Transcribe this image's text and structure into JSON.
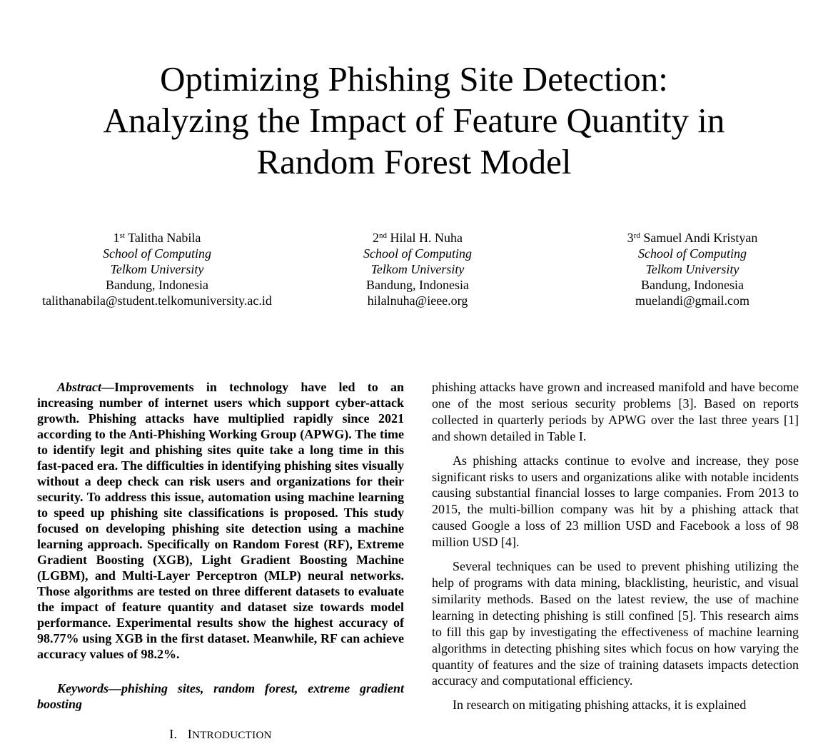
{
  "title_lines": [
    "Optimizing Phishing Site Detection:",
    "Analyzing the Impact of Feature Quantity in",
    "Random Forest Model"
  ],
  "authors": [
    {
      "ordinal_num": "1",
      "ordinal_sup": "st",
      "name": "Talitha Nabila",
      "school": "School of Computing",
      "university": "Telkom University",
      "location": "Bandung, Indonesia",
      "email": "talithanabila@student.telkomuniversity.ac.id"
    },
    {
      "ordinal_num": "2",
      "ordinal_sup": "nd",
      "name": "Hilal H. Nuha",
      "school": "School of Computing",
      "university": "Telkom University",
      "location": "Bandung, Indonesia",
      "email": "hilalnuha@ieee.org"
    },
    {
      "ordinal_num": "3",
      "ordinal_sup": "rd",
      "name": "Samuel Andi Kristyan",
      "school": "School of Computing",
      "university": "Telkom University",
      "location": "Bandung, Indonesia",
      "email": "muelandi@gmail.com"
    }
  ],
  "abstract": {
    "label": "Abstract",
    "dash": "—",
    "text": "Improvements in technology have led to an increasing number of internet users which support cyber-attack growth. Phishing attacks have multiplied rapidly since 2021 according to the Anti-Phishing Working Group (APWG). The time to identify legit and phishing sites quite take a long time in this fast-paced era. The difficulties in identifying phishing sites visually without a deep check can risk users and organizations for their security. To address this issue, automation using machine learning to speed up phishing site classifications is proposed. This study focused on developing phishing site detection using a machine learning approach. Specifically on Random Forest (RF), Extreme Gradient Boosting (XGB), Light Gradient Boosting Machine (LGBM), and Multi-Layer Perceptron (MLP) neural networks. Those algorithms are tested on three different datasets to evaluate the impact of feature quantity and dataset size towards model performance. Experimental results show the highest accuracy of 98.77% using XGB in the first dataset. Meanwhile, RF can achieve accuracy values of 98.2%."
  },
  "keywords": {
    "label": "Keywords",
    "dash": "—",
    "text": "phishing sites, random forest, extreme gradient boosting"
  },
  "section": {
    "number": "I.",
    "initial": "I",
    "rest": "NTRODUCTION"
  },
  "body_paragraphs": [
    "phishing attacks have grown and increased manifold and have become one of the most serious security problems [3]. Based on reports collected in quarterly periods by APWG over the last three years [1] and shown detailed in Table I.",
    "As phishing attacks continue to evolve and increase, they pose significant risks to users and organizations alike with notable incidents causing substantial financial losses to large companies. From 2013 to 2015, the multi-billion company was hit by a phishing attack that caused Google a loss of 23 million USD and Facebook a loss of 98 million USD [4].",
    "Several techniques can be used to prevent phishing utilizing the help of programs with data mining, blacklisting, heuristic, and visual similarity methods. Based on the latest review, the use of machine learning in detecting phishing is still confined [5]. This research aims to fill this gap by investigating the effectiveness of machine learning algorithms in detecting phishing sites which focus on how varying the quantity of features and the size of training datasets impacts detection accuracy and computational efficiency.",
    "In research on mitigating phishing attacks, it is explained"
  ]
}
